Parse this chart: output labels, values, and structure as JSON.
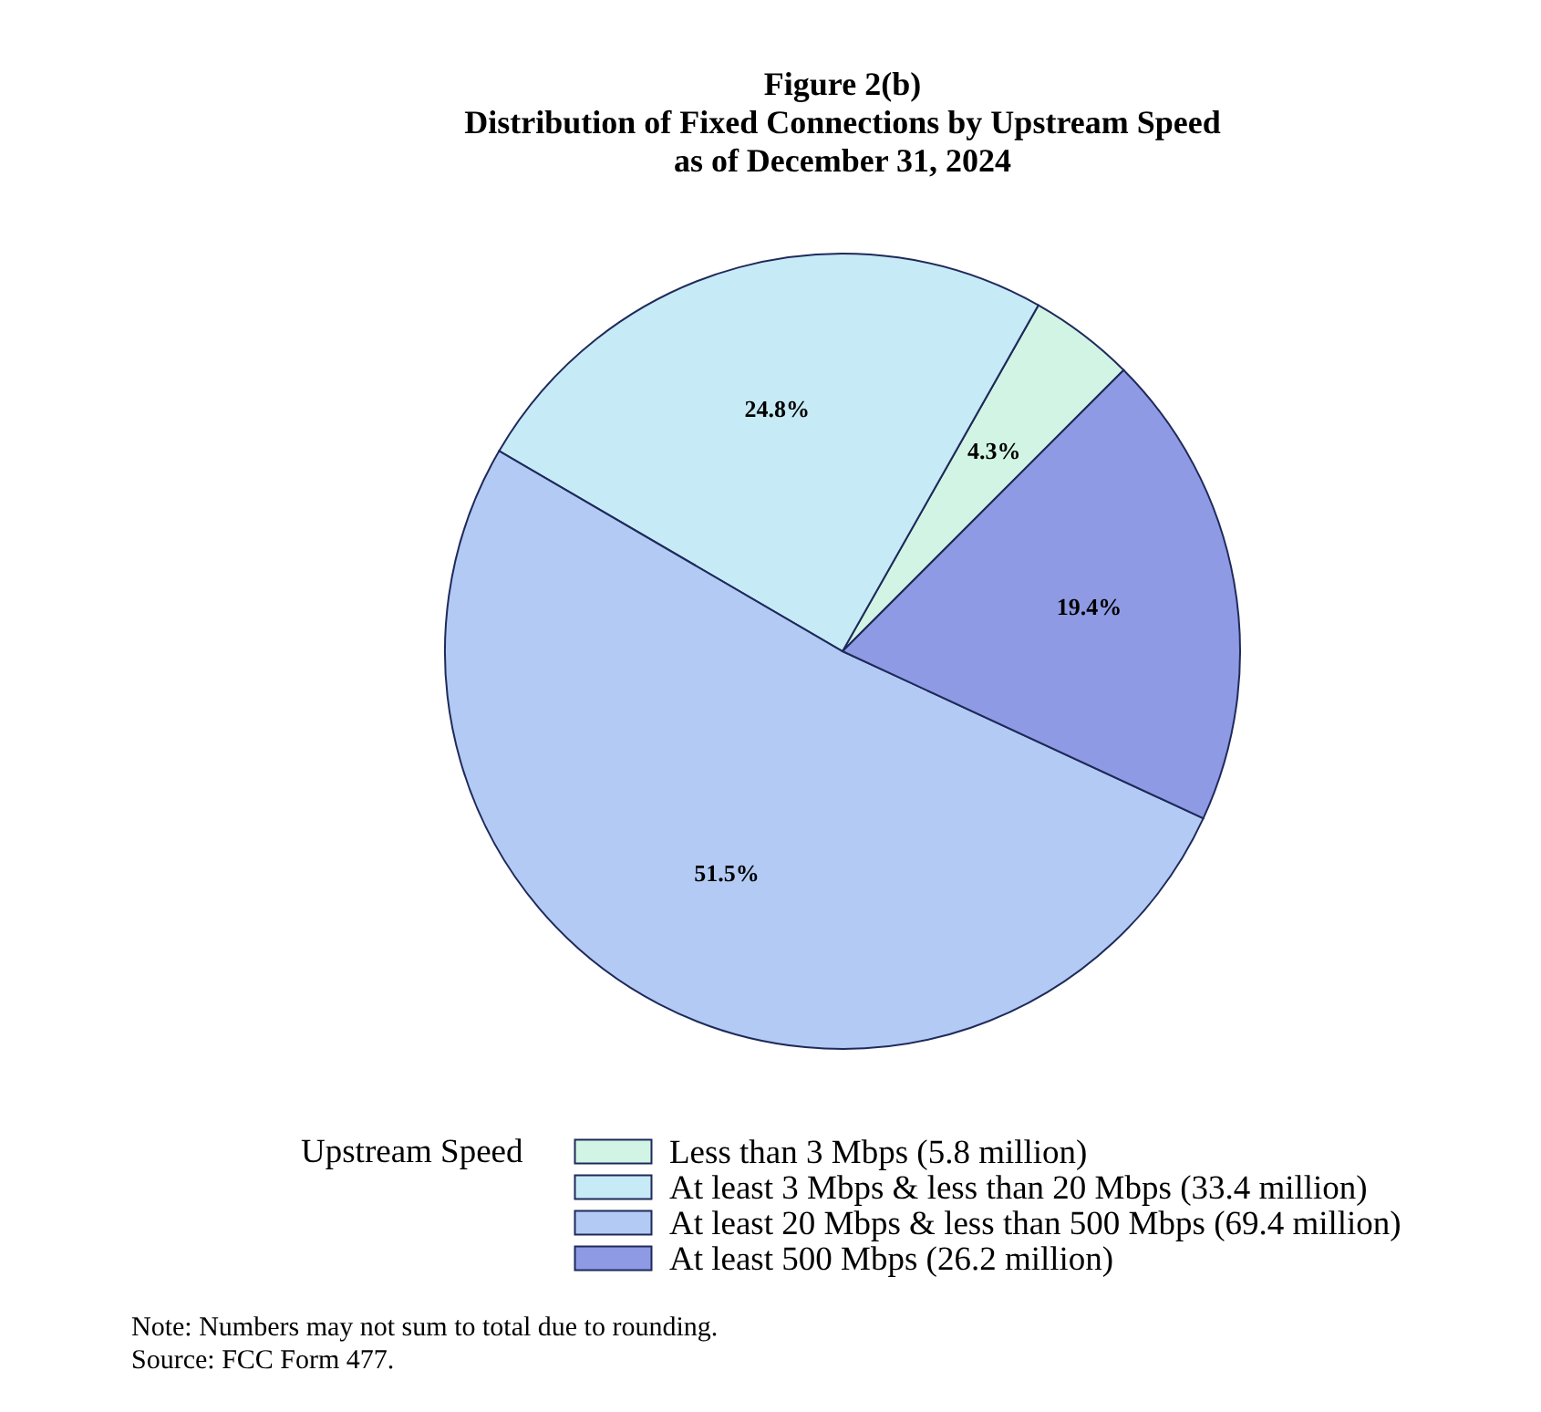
{
  "chart_data": {
    "type": "pie",
    "title": "Figure 2(b)\nDistribution of Fixed Connections by Upstream Speed\nas of December 31, 2024",
    "legend_title": "Upstream Speed",
    "categories": [
      "Less than 3 Mbps (5.8 million)",
      "At least 3 Mbps & less than 20 Mbps (33.4 million)",
      "At least 20 Mbps & less than 500 Mbps (69.4 million)",
      "At least 500 Mbps (26.2 million)"
    ],
    "values": [
      4.3,
      24.8,
      51.5,
      19.4
    ],
    "colors": [
      "#d2f4e4",
      "#c6eaf6",
      "#b3cbf4",
      "#8e9ae4"
    ],
    "value_labels": [
      "4.3%",
      "24.8%",
      "51.5%",
      "19.4%"
    ],
    "legend": "bottom",
    "annotations": [
      "Note: Numbers may not sum to total due to rounding.",
      "Source: FCC Form 477."
    ]
  }
}
